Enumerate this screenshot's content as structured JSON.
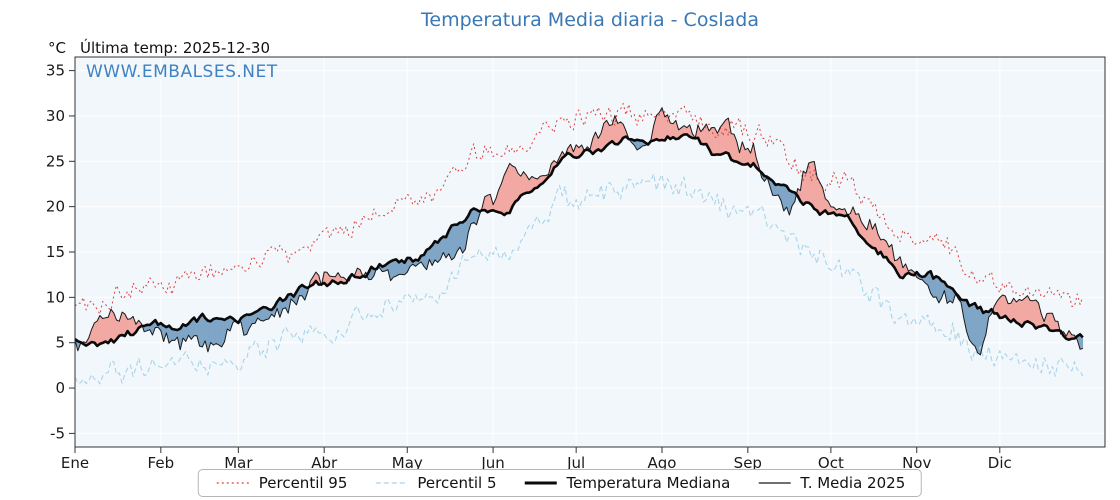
{
  "colors": {
    "title": "#3a78b5",
    "watermark": "#3f82c4",
    "p95": "#dd4040",
    "p5": "#a9d4e8",
    "median": "#0a0a0a",
    "t2025": "#1a1a1a",
    "fill_above": "#f2a8a3",
    "fill_below": "#7fa5c7",
    "plot_bg": "#f2f7fb",
    "grid": "#ffffff",
    "axis": "#333333",
    "tick_text": "#1a1a1a"
  },
  "legend": {
    "items": [
      {
        "label": "Percentil 95"
      },
      {
        "label": "Percentil 5"
      },
      {
        "label": "Temperatura Mediana"
      },
      {
        "label": "T. Media 2025"
      }
    ]
  },
  "chart_data": {
    "type": "line",
    "title": "Temperatura Media diaria - Coslada",
    "ylabel": "°C",
    "annotation": "Última temp: 2025-12-30",
    "watermark": "WWW.EMBALSES.NET",
    "x_months": [
      "Ene",
      "Feb",
      "Mar",
      "Abr",
      "May",
      "Jun",
      "Jul",
      "Ago",
      "Sep",
      "Oct",
      "Nov",
      "Dic"
    ],
    "month_start_days": [
      0,
      31,
      59,
      90,
      120,
      151,
      181,
      212,
      243,
      273,
      304,
      334
    ],
    "days_in_year": 365,
    "xlim_days": [
      0,
      372
    ],
    "ylim": [
      -6.5,
      36.5
    ],
    "yticks": [
      -5,
      0,
      5,
      10,
      15,
      20,
      25,
      30,
      35
    ],
    "grid": true,
    "legend_position": "bottom",
    "series": [
      {
        "name": "Percentil 95",
        "anchor_days": [
          0,
          31,
          59,
          90,
          120,
          151,
          181,
          212,
          243,
          273,
          304,
          334,
          364
        ],
        "anchor_values": [
          9.5,
          11.5,
          13.5,
          16.5,
          20.5,
          26.0,
          30.0,
          30.5,
          28.5,
          23.0,
          16.5,
          11.5,
          9.5
        ],
        "noise": {
          "amp": 2.0,
          "smooth": 0.5,
          "jitter": 0.5,
          "seed": 101
        },
        "style": {
          "color": "p95",
          "width": 1,
          "dash": "2 3"
        }
      },
      {
        "name": "Percentil 5",
        "anchor_days": [
          0,
          31,
          59,
          90,
          120,
          151,
          181,
          212,
          243,
          273,
          304,
          334,
          364
        ],
        "anchor_values": [
          1.5,
          2.0,
          3.5,
          6.0,
          9.5,
          15.0,
          21.0,
          22.5,
          19.5,
          13.5,
          7.5,
          3.5,
          2.0
        ],
        "noise": {
          "amp": 2.0,
          "smooth": 0.5,
          "jitter": 0.5,
          "seed": 202
        },
        "style": {
          "color": "p5",
          "width": 1.1,
          "dash": "5 3"
        }
      },
      {
        "name": "Temperatura Mediana",
        "anchor_days": [
          0,
          31,
          59,
          90,
          120,
          151,
          181,
          212,
          243,
          273,
          304,
          334,
          364
        ],
        "anchor_values": [
          5.0,
          6.5,
          8.0,
          11.0,
          14.5,
          20.0,
          25.5,
          27.5,
          24.5,
          19.0,
          12.5,
          8.0,
          5.5
        ],
        "noise": {
          "amp": 2.0,
          "smooth": 0.8,
          "jitter": 0.1,
          "seed": 303
        },
        "style": {
          "color": "median",
          "width": 2.6,
          "dash": ""
        }
      },
      {
        "name": "T. Media 2025",
        "anchor_days": [
          0,
          14,
          31,
          45,
          59,
          74,
          90,
          105,
          120,
          135,
          151,
          158,
          166,
          181,
          196,
          205,
          212,
          227,
          235,
          243,
          252,
          258,
          266,
          273,
          288,
          304,
          318,
          326,
          334,
          342,
          352,
          364
        ],
        "anchor_values": [
          5.0,
          8.0,
          5.5,
          5.5,
          6.5,
          8.0,
          11.5,
          12.0,
          13.0,
          14.5,
          21.0,
          24.5,
          22.5,
          27.0,
          28.5,
          26.5,
          29.5,
          28.5,
          29.5,
          26.0,
          22.0,
          20.0,
          24.0,
          20.0,
          17.5,
          12.5,
          9.5,
          5.0,
          9.0,
          10.0,
          7.5,
          5.0
        ],
        "noise": {
          "amp": 2.2,
          "smooth": 0.75,
          "jitter": 0.6,
          "seed": 404
        },
        "style": {
          "color": "t2025",
          "width": 1,
          "dash": ""
        }
      }
    ],
    "fill_between": {
      "upper": "T. Media 2025",
      "base": "Temperatura Mediana",
      "above": "fill_above",
      "below": "fill_below"
    }
  }
}
